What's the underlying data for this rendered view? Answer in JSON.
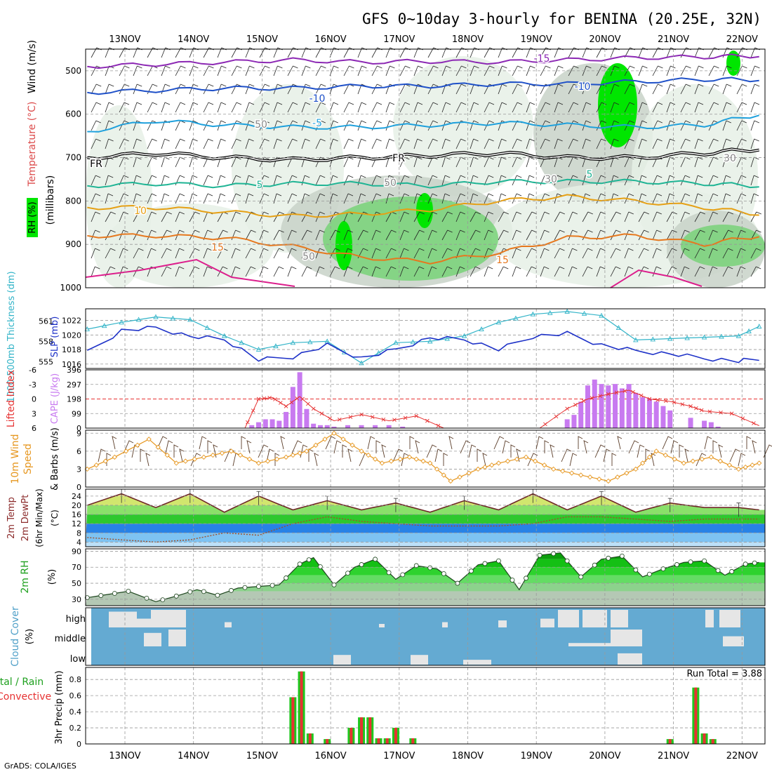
{
  "title": "GFS 0~10day 3-hourly for BENINA (20.25E, 32N)",
  "footer_credit": "GrADS: COLA/IGES",
  "colors": {
    "temp_contour_cold": "#1e50c8",
    "temp_contour_mid": "#1ea0dc",
    "temp_contour_5": "#1eb494",
    "temp_contour_10": "#e6a014",
    "temp_contour_15": "#e6781e",
    "temp_contour_20": "#dc1e8c",
    "temp_contour_m15": "#8c28b4",
    "rh_shade_light": "#e6f0e6",
    "rh_shade_mid": "#c8d2c8",
    "rh_shade_green": "#78d278",
    "rh_shade_bright": "#00e600",
    "slp": "#1e32c8",
    "thickness": "#32b4c8",
    "cape_bar": "#c87af0",
    "lifted_index": "#e63232",
    "wind10m": "#e6961e",
    "temp_fill": "#d2e66e",
    "dewpt_fill": "#2882e6",
    "rh2m_fill": "#1ec81e",
    "cloud_bg": "#64aad2",
    "cloud_cover": "#e6e6e6",
    "precip_total": "#1ec81e",
    "precip_conv": "#e63232"
  },
  "x_axis": {
    "ticks": [
      "13NOV",
      "14NOV",
      "15NOV",
      "16NOV",
      "17NOV",
      "18NOV",
      "19NOV",
      "20NOV",
      "21NOV",
      "22NOV"
    ]
  },
  "chart_data": [
    {
      "type": "heatmap",
      "panel": "upper-air",
      "ylabel": "(millibars)",
      "side_labels": [
        "Wind (m/s)",
        "Temperature (°C)",
        "RH (%)"
      ],
      "y_ticks": [
        500,
        600,
        700,
        800,
        900,
        1000
      ],
      "ylim": [
        1000,
        450
      ],
      "contour_labels": [
        "-15",
        "-10",
        "-10",
        "-5",
        "FR",
        "FR",
        "5",
        "5",
        "10",
        "15",
        "15",
        "50",
        "50",
        "50",
        "30",
        "30"
      ],
      "series": [
        {
          "name": "-15",
          "x_day": [
            0,
            1,
            2,
            3,
            4,
            5,
            6,
            7,
            8,
            9,
            9.8
          ],
          "y_mb": [
            490,
            485,
            480,
            475,
            480,
            478,
            480,
            475,
            470,
            468,
            465
          ]
        },
        {
          "name": "-10",
          "x_day": [
            0,
            1,
            2,
            3,
            4,
            5,
            6,
            7,
            8,
            9,
            9.8
          ],
          "y_mb": [
            550,
            545,
            540,
            540,
            535,
            535,
            530,
            530,
            525,
            520,
            520
          ]
        },
        {
          "name": "-5",
          "x_day": [
            0,
            1,
            2,
            3,
            4,
            5,
            6,
            7,
            8,
            9,
            9.8
          ],
          "y_mb": [
            640,
            615,
            625,
            630,
            630,
            625,
            620,
            625,
            630,
            625,
            600
          ]
        },
        {
          "name": "FR",
          "x_day": [
            0,
            1,
            2,
            3,
            4,
            5,
            6,
            7,
            8,
            9,
            9.8
          ],
          "y_mb": [
            700,
            690,
            700,
            705,
            700,
            695,
            690,
            700,
            700,
            690,
            680
          ]
        },
        {
          "name": "5",
          "x_day": [
            0,
            1,
            2,
            3,
            4,
            5,
            6,
            7,
            8,
            9,
            9.8
          ],
          "y_mb": [
            765,
            760,
            765,
            760,
            760,
            765,
            755,
            755,
            755,
            760,
            765
          ]
        },
        {
          "name": "10",
          "x_day": [
            0,
            1,
            2,
            3,
            4,
            5,
            6,
            7,
            8,
            9,
            9.8
          ],
          "y_mb": [
            815,
            815,
            825,
            835,
            830,
            820,
            800,
            790,
            800,
            815,
            830
          ]
        },
        {
          "name": "15",
          "x_day": [
            0,
            1,
            2,
            3,
            4,
            5,
            6,
            7,
            8,
            9,
            9.8
          ],
          "y_mb": [
            880,
            880,
            885,
            905,
            930,
            940,
            920,
            885,
            880,
            900,
            880
          ]
        }
      ]
    },
    {
      "type": "line",
      "panel": "slp-thickness",
      "ylabel_left": "1000-500mb Thickness (dm)",
      "ylabel_right": "SLP (mb)",
      "y_ticks_thickness": [
        555,
        558,
        561
      ],
      "y_ticks_slp": [
        1016,
        1018,
        1020,
        1022
      ],
      "series": [
        {
          "name": "1000-500mb Thickness",
          "x_day": [
            0,
            0.5,
            1,
            1.5,
            2,
            2.5,
            3,
            3.5,
            4,
            4.5,
            5,
            5.5,
            6,
            6.5,
            7,
            7.5,
            8,
            8.5,
            9,
            9.5,
            9.8
          ],
          "values": [
            559.8,
            560.8,
            561.6,
            561.2,
            558.8,
            556.8,
            557.8,
            558.0,
            554.8,
            557.8,
            558.0,
            558.8,
            560.8,
            562.0,
            562.4,
            561.8,
            558.2,
            558.4,
            558.6,
            558.8,
            560.2
          ]
        },
        {
          "name": "SLP",
          "x_day": [
            0,
            0.5,
            1,
            1.5,
            2,
            2.5,
            3,
            3.5,
            4,
            4.5,
            5,
            5.5,
            6,
            6.5,
            7,
            7.5,
            8,
            8.5,
            9,
            9.5,
            9.8
          ],
          "values": [
            1017.6,
            1020.6,
            1021.0,
            1019.8,
            1019.4,
            1016.6,
            1017.0,
            1018.6,
            1016.8,
            1018.0,
            1019.6,
            1019.4,
            1018.0,
            1019.8,
            1020.2,
            1018.6,
            1017.8,
            1017.4,
            1016.8,
            1016.4,
            1016.8
          ]
        }
      ]
    },
    {
      "type": "bar",
      "panel": "cape-li",
      "ylabel_left": "Lifted Index",
      "ylabel_right": "CAPE (J/kg)",
      "y_ticks_li": [
        -6,
        -3,
        0,
        3,
        6
      ],
      "y_ticks_cape": [
        0,
        99,
        198,
        297,
        396
      ],
      "series": [
        {
          "name": "CAPE",
          "x_day": [
            2.4,
            2.5,
            2.6,
            2.7,
            2.8,
            2.9,
            3.0,
            3.1,
            3.2,
            3.3,
            3.4,
            3.5,
            3.6,
            3.8,
            4.0,
            4.2,
            4.4,
            4.6,
            7.0,
            7.1,
            7.2,
            7.3,
            7.4,
            7.5,
            7.6,
            7.7,
            7.8,
            7.9,
            8.0,
            8.1,
            8.2,
            8.3,
            8.4,
            8.5,
            8.8,
            9.0,
            9.1,
            9.2
          ],
          "values": [
            20,
            40,
            60,
            60,
            50,
            110,
            280,
            380,
            130,
            30,
            20,
            20,
            10,
            20,
            20,
            20,
            20,
            10,
            60,
            90,
            180,
            290,
            330,
            300,
            290,
            300,
            270,
            300,
            240,
            210,
            200,
            180,
            150,
            120,
            70,
            50,
            40,
            10
          ]
        },
        {
          "name": "Lifted Index",
          "x_day": [
            0,
            2.3,
            2.5,
            2.7,
            2.9,
            3.1,
            3.3,
            3.6,
            4.0,
            4.4,
            4.8,
            5.2,
            6.0,
            6.6,
            7.0,
            7.3,
            7.6,
            7.9,
            8.2,
            8.5,
            8.8,
            9.0,
            9.4,
            9.8
          ],
          "values": [
            6,
            6,
            0,
            -0.3,
            1.5,
            -0.5,
            2,
            4.5,
            3.2,
            4.5,
            3.5,
            6,
            6,
            6,
            2,
            0,
            -1,
            -1.8,
            0,
            0.5,
            1.5,
            2.5,
            3,
            5.5
          ]
        }
      ]
    },
    {
      "type": "line",
      "panel": "wind10m",
      "ylabel": "10m Wind Speed & Barbs (m/s)",
      "y_ticks": [
        0,
        3,
        6,
        9
      ],
      "ylim": [
        0,
        9.5
      ],
      "series": [
        {
          "name": "10m Wind Speed",
          "x_day": [
            0,
            0.4,
            0.9,
            1.3,
            1.7,
            2.1,
            2.5,
            2.9,
            3.2,
            3.6,
            4.0,
            4.3,
            4.7,
            5.0,
            5.3,
            5.7,
            6.0,
            6.4,
            6.8,
            7.2,
            7.6,
            8.0,
            8.3,
            8.7,
            9.1,
            9.5,
            9.8
          ],
          "values": [
            3,
            5,
            8,
            4,
            5,
            6,
            4,
            5,
            6,
            9,
            6,
            4,
            5,
            4,
            1,
            3,
            4,
            5,
            3,
            2,
            1,
            3,
            6,
            4,
            5,
            3,
            4
          ]
        }
      ]
    },
    {
      "type": "area",
      "panel": "temp-dewpt",
      "ylabel": "2m Temp 2m DewPt (6hr Min/Max) (°C)",
      "y_ticks": [
        4,
        8,
        12,
        16,
        20,
        24
      ],
      "series": [
        {
          "name": "2m Temp",
          "x_day": [
            0,
            0.5,
            1,
            1.5,
            2,
            2.5,
            3,
            3.5,
            4,
            4.5,
            5,
            5.5,
            6,
            6.5,
            7,
            7.5,
            8,
            8.5,
            9,
            9.5,
            9.8
          ],
          "values": [
            20,
            25,
            19,
            25,
            17,
            24,
            18,
            22,
            18,
            21,
            17,
            22,
            18,
            25,
            18,
            24,
            17,
            21,
            19,
            19,
            18
          ]
        },
        {
          "name": "2m DewPt",
          "x_day": [
            0,
            0.5,
            1,
            1.5,
            2,
            2.5,
            3,
            3.5,
            4,
            4.5,
            5,
            5.5,
            6,
            6.5,
            7,
            7.5,
            8,
            8.5,
            9,
            9.5,
            9.8
          ],
          "values": [
            6,
            5,
            4,
            5,
            8,
            7,
            12,
            15,
            13,
            12,
            11,
            11,
            11,
            12,
            15,
            15,
            14,
            13,
            14,
            14,
            14
          ]
        }
      ]
    },
    {
      "type": "area",
      "panel": "rh2m",
      "ylabel": "2m RH (%)",
      "y_ticks": [
        30,
        50,
        70,
        90
      ],
      "series": [
        {
          "name": "2m RH",
          "x_day": [
            0,
            0.3,
            0.6,
            1.0,
            1.3,
            1.6,
            1.9,
            2.2,
            2.5,
            2.8,
            3.1,
            3.3,
            3.6,
            3.9,
            4.2,
            4.5,
            4.8,
            5.1,
            5.4,
            5.7,
            6.0,
            6.3,
            6.6,
            6.9,
            7.2,
            7.5,
            7.8,
            8.1,
            8.4,
            8.7,
            9.0,
            9.3,
            9.6,
            9.8
          ],
          "values": [
            32,
            36,
            40,
            27,
            34,
            42,
            35,
            44,
            46,
            48,
            74,
            82,
            48,
            70,
            80,
            55,
            72,
            68,
            50,
            73,
            78,
            42,
            85,
            88,
            58,
            80,
            84,
            58,
            68,
            76,
            78,
            60,
            74,
            76
          ]
        }
      ]
    },
    {
      "type": "heatmap",
      "panel": "cloud-cover",
      "ylabel": "Cloud Cover (%)",
      "y_tick_labels": [
        "high",
        "middle",
        "low"
      ],
      "series": [
        {
          "name": "high",
          "x_day": [
            0.2,
            0.5,
            1.0,
            6.7,
            7.2,
            9.4,
            9.6
          ],
          "values": [
            20,
            100,
            90,
            60,
            100,
            100,
            50
          ]
        },
        {
          "name": "middle",
          "x_day": [
            0.7,
            1.5,
            7.2,
            9.5
          ],
          "values": [
            60,
            90,
            100,
            40
          ]
        },
        {
          "name": "low",
          "x_day": [
            3.2,
            4.5,
            5.1,
            7.5
          ],
          "values": [
            60,
            40,
            30,
            60
          ]
        }
      ]
    },
    {
      "type": "bar",
      "panel": "precip",
      "ylabel": "3hr Precip (mm)",
      "side_labels": [
        "Total / Rain",
        "Convective"
      ],
      "annotation": "Run Total = 3.88",
      "y_ticks": [
        0,
        0.2,
        0.4,
        0.6,
        0.8
      ],
      "ylim": [
        0,
        0.95
      ],
      "series": [
        {
          "name": "3hr Precip",
          "x_day": [
            3.0,
            3.125,
            3.25,
            3.5,
            3.85,
            4.0,
            4.125,
            4.25,
            4.375,
            4.5,
            4.75,
            8.5,
            8.875,
            9.0,
            9.125
          ],
          "values": [
            0.58,
            0.9,
            0.13,
            0.06,
            0.2,
            0.33,
            0.33,
            0.07,
            0.07,
            0.2,
            0.07,
            0.06,
            0.7,
            0.13,
            0.06
          ]
        }
      ]
    }
  ]
}
